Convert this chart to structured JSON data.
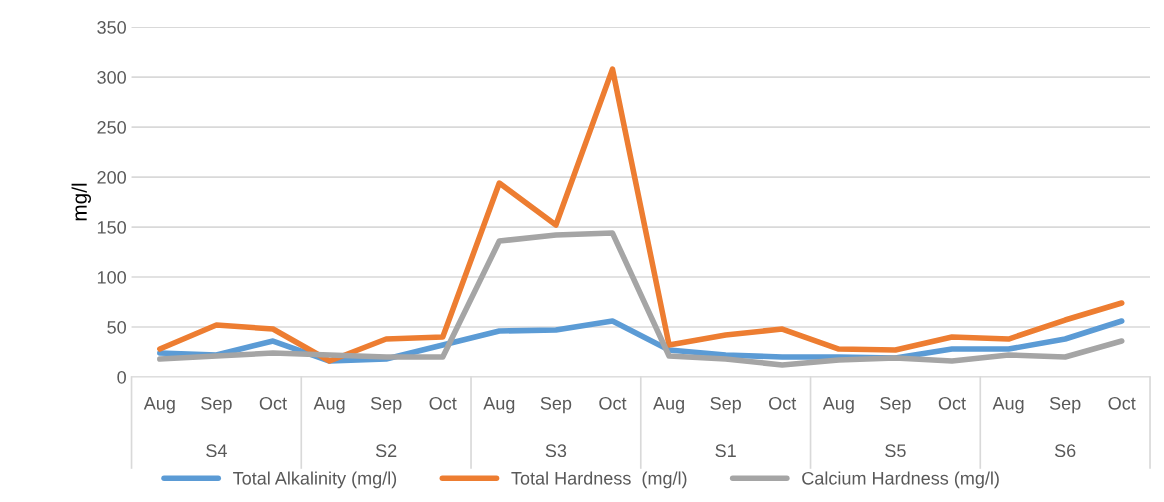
{
  "chart_data": {
    "type": "line",
    "ylabel": "mg/l",
    "categories": [
      "Aug",
      "Sep",
      "Oct",
      "Aug",
      "Sep",
      "Oct",
      "Aug",
      "Sep",
      "Oct",
      "Aug",
      "Sep",
      "Oct",
      "Aug",
      "Sep",
      "Oct",
      "Aug",
      "Sep",
      "Oct"
    ],
    "annotations": [
      "S4",
      "S2",
      "S3",
      "S1",
      "S5",
      "S6"
    ],
    "series": [
      {
        "name": "Total Alkalinity (mg/l)",
        "color": "#5b9bd5",
        "values": [
          24,
          22,
          36,
          16,
          18,
          32,
          46,
          47,
          56,
          27,
          22,
          20,
          20,
          19,
          28,
          28,
          38,
          56
        ]
      },
      {
        "name": "Total Hardness  (mg/l)",
        "color": "#ed7d31",
        "values": [
          28,
          52,
          48,
          16,
          38,
          40,
          194,
          152,
          308,
          32,
          42,
          48,
          28,
          27,
          40,
          38,
          57,
          74
        ]
      },
      {
        "name": "Calcium Hardness (mg/l)",
        "color": "#a5a5a5",
        "values": [
          18,
          21,
          24,
          22,
          20,
          20,
          136,
          142,
          144,
          21,
          18,
          12,
          17,
          19,
          16,
          22,
          20,
          36
        ]
      }
    ],
    "ylim": [
      0,
      350
    ],
    "yticks": [
      0,
      50,
      100,
      150,
      200,
      250,
      300,
      350
    ],
    "grid": "y",
    "legend": "bottom",
    "marker": "none",
    "line_style": "solid"
  }
}
